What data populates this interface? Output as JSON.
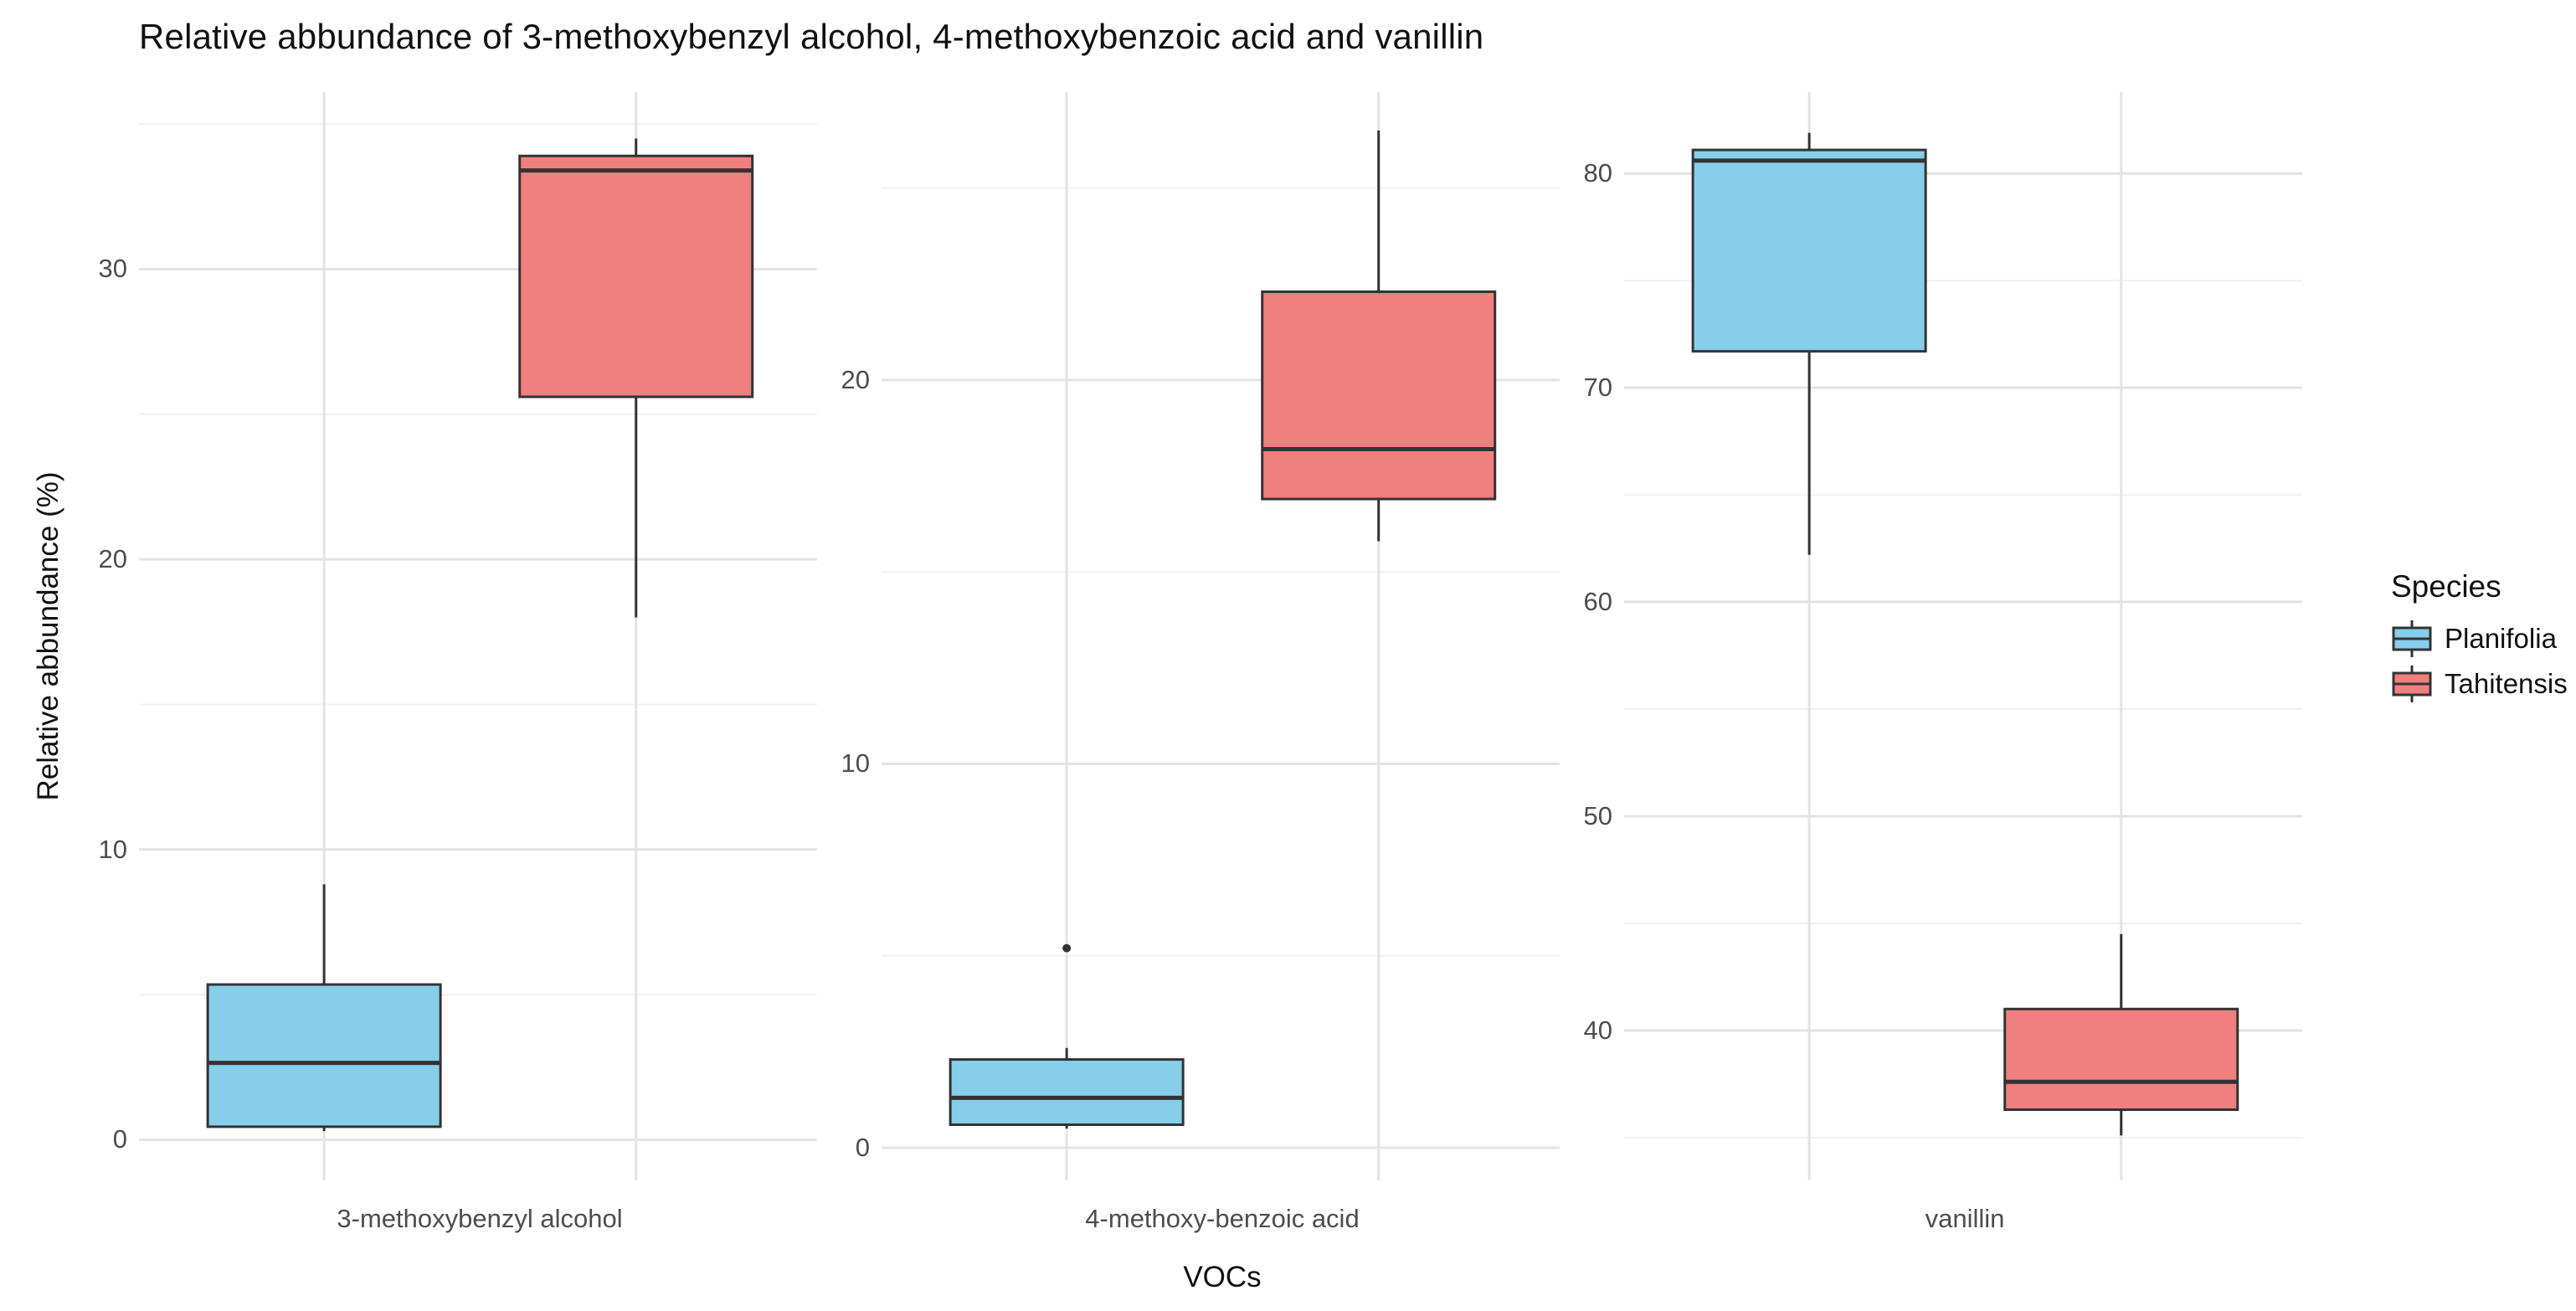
{
  "title": "Relative abbundance of 3-methoxybenzyl alcohol, 4-methoxybenzoic acid and vanillin",
  "axes": {
    "y_title": "Relative abbundance (%)",
    "x_title": "VOCs"
  },
  "legend": {
    "title": "Species",
    "items": [
      {
        "label": "Planifolia",
        "color": "#87CEEB"
      },
      {
        "label": "Tahitensis",
        "color": "#F08080"
      }
    ]
  },
  "colors": {
    "planifolia_fill": "#87CEEB",
    "tahitensis_fill": "#F08080",
    "box_border": "#333333",
    "grid_major": "#e3e3e3",
    "grid_minor": "#f0f0f0",
    "axis_text": "#4d4d4d",
    "title_text": "#111111",
    "background": "#ffffff"
  },
  "chart_data": {
    "type": "boxplot",
    "orientation": "vertical",
    "legend_position": "right",
    "grid": "major+minor",
    "facets": [
      {
        "category": "3-methoxybenzyl alcohol",
        "y_domain": [
          -1.4,
          36.1
        ],
        "y_major_ticks": [
          0,
          10,
          20,
          30
        ],
        "y_minor_ticks": [
          5,
          15,
          25,
          35
        ],
        "series": [
          {
            "name": "Planifolia",
            "min": 0.3,
            "q1": 0.45,
            "median": 2.65,
            "q3": 5.35,
            "max": 8.8,
            "outliers": []
          },
          {
            "name": "Tahitensis",
            "min": 18.0,
            "q1": 25.6,
            "median": 33.4,
            "q3": 33.9,
            "max": 34.5,
            "outliers": []
          }
        ]
      },
      {
        "category": "4-methoxy-benzoic acid",
        "y_domain": [
          -0.85,
          27.5
        ],
        "y_major_ticks": [
          0,
          10,
          20
        ],
        "y_minor_ticks": [
          5,
          15,
          25
        ],
        "series": [
          {
            "name": "Planifolia",
            "min": 0.5,
            "q1": 0.6,
            "median": 1.3,
            "q3": 2.3,
            "max": 2.6,
            "outliers": [
              5.2
            ]
          },
          {
            "name": "Tahitensis",
            "min": 15.8,
            "q1": 16.9,
            "median": 18.2,
            "q3": 22.3,
            "max": 26.5,
            "outliers": []
          }
        ]
      },
      {
        "category": "vanillin",
        "y_domain": [
          33.0,
          83.8
        ],
        "y_major_ticks": [
          40,
          50,
          60,
          70,
          80
        ],
        "y_minor_ticks": [
          35,
          45,
          55,
          65,
          75
        ],
        "series": [
          {
            "name": "Planifolia",
            "min": 62.2,
            "q1": 71.7,
            "median": 80.6,
            "q3": 81.1,
            "max": 81.9,
            "outliers": []
          },
          {
            "name": "Tahitensis",
            "min": 35.1,
            "q1": 36.3,
            "median": 37.6,
            "q3": 41.0,
            "max": 44.5,
            "outliers": []
          }
        ]
      }
    ]
  }
}
